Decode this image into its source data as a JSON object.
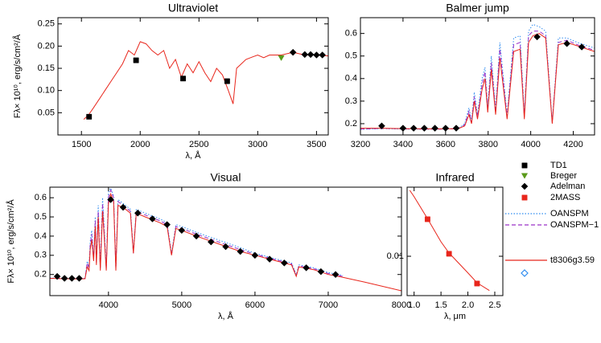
{
  "chart_data": [
    {
      "type": "line",
      "title": "Ultraviolet",
      "x_label": "λ, Å",
      "y_label": "Fλ× 10¹⁰, erg/s/cm²/Å",
      "xlim": [
        1300,
        3600
      ],
      "ylim": [
        0,
        0.264
      ],
      "xticks": [
        1500,
        2000,
        2500,
        3000,
        3500
      ],
      "yticks": [
        0.05,
        {
          "value": 0.1,
          "label": "0.10"
        },
        0.15,
        {
          "value": 0.2,
          "label": "0.20"
        },
        0.25
      ],
      "series": [
        {
          "style": "solid",
          "color": "#e8261c",
          "x": [
            1520,
            1560,
            1600,
            1650,
            1700,
            1750,
            1800,
            1850,
            1900,
            1950,
            2000,
            2050,
            2100,
            2150,
            2200,
            2250,
            2300,
            2350,
            2400,
            2450,
            2500,
            2550,
            2600,
            2650,
            2700,
            2750,
            2790,
            2820,
            2900,
            2950,
            3000,
            3050,
            3100,
            3200,
            3300,
            3400,
            3500,
            3600
          ],
          "values": [
            0.035,
            0.045,
            0.06,
            0.08,
            0.1,
            0.12,
            0.14,
            0.16,
            0.19,
            0.18,
            0.21,
            0.205,
            0.19,
            0.18,
            0.19,
            0.15,
            0.17,
            0.13,
            0.16,
            0.14,
            0.165,
            0.14,
            0.12,
            0.15,
            0.135,
            0.1,
            0.07,
            0.15,
            0.17,
            0.175,
            0.18,
            0.174,
            0.18,
            0.18,
            0.186,
            0.18,
            0.18,
            0.178
          ]
        },
        {
          "style": "square",
          "color": "#000000",
          "x": [
            1565,
            1965,
            2365,
            2740
          ],
          "values": [
            0.041,
            0.168,
            0.127,
            0.121
          ]
        },
        {
          "style": "triangle",
          "color": "#5a9a1a",
          "x": [
            3200
          ],
          "values": [
            0.173
          ]
        },
        {
          "style": "diamond",
          "color": "#000000",
          "x": [
            3300,
            3400,
            3450,
            3500,
            3550
          ],
          "values": [
            0.186,
            0.181,
            0.181,
            0.18,
            0.18
          ]
        }
      ]
    },
    {
      "type": "line",
      "title": "Balmer jump",
      "xlim": [
        3200,
        4300
      ],
      "ylim": [
        0.15,
        0.67
      ],
      "xticks": [
        3200,
        3400,
        3600,
        3800,
        4000,
        4200
      ],
      "yticks": [
        0.2,
        0.3,
        0.4,
        0.5,
        0.6
      ],
      "series": [
        {
          "style": "dotted",
          "color": "#2f8cf0",
          "x": [
            3200,
            3300,
            3400,
            3500,
            3600,
            3660,
            3690,
            3710,
            3722,
            3735,
            3750,
            3771,
            3785,
            3798,
            3815,
            3835,
            3855,
            3889,
            3920,
            3950,
            3970,
            3990,
            4010,
            4040,
            4070,
            4101,
            4130,
            4170,
            4220,
            4300
          ],
          "values": [
            0.175,
            0.178,
            0.176,
            0.176,
            0.176,
            0.178,
            0.2,
            0.27,
            0.21,
            0.34,
            0.24,
            0.4,
            0.45,
            0.27,
            0.5,
            0.26,
            0.56,
            0.24,
            0.58,
            0.59,
            0.24,
            0.61,
            0.64,
            0.63,
            0.61,
            0.21,
            0.58,
            0.58,
            0.56,
            0.535
          ]
        },
        {
          "style": "dashed",
          "color": "#9b30c8",
          "x": [
            3200,
            3300,
            3400,
            3500,
            3600,
            3660,
            3690,
            3710,
            3722,
            3735,
            3750,
            3771,
            3785,
            3798,
            3815,
            3835,
            3855,
            3889,
            3920,
            3950,
            3970,
            3990,
            4010,
            4040,
            4070,
            4101,
            4130,
            4170,
            4220,
            4300
          ],
          "values": [
            0.176,
            0.179,
            0.177,
            0.176,
            0.176,
            0.178,
            0.195,
            0.255,
            0.205,
            0.32,
            0.23,
            0.37,
            0.43,
            0.26,
            0.47,
            0.25,
            0.53,
            0.23,
            0.55,
            0.56,
            0.23,
            0.59,
            0.61,
            0.61,
            0.59,
            0.205,
            0.56,
            0.57,
            0.55,
            0.525
          ]
        },
        {
          "style": "solid",
          "color": "#e8261c",
          "x": [
            3200,
            3300,
            3400,
            3500,
            3600,
            3660,
            3690,
            3710,
            3722,
            3735,
            3750,
            3771,
            3785,
            3798,
            3815,
            3835,
            3855,
            3889,
            3920,
            3950,
            3970,
            3990,
            4010,
            4040,
            4070,
            4101,
            4130,
            4170,
            4220,
            4300
          ],
          "values": [
            0.18,
            0.18,
            0.178,
            0.177,
            0.177,
            0.178,
            0.19,
            0.24,
            0.2,
            0.3,
            0.22,
            0.35,
            0.4,
            0.25,
            0.44,
            0.24,
            0.49,
            0.22,
            0.52,
            0.53,
            0.22,
            0.56,
            0.59,
            0.6,
            0.58,
            0.2,
            0.55,
            0.56,
            0.545,
            0.52
          ]
        },
        {
          "style": "diamond",
          "color": "#000000",
          "x": [
            3300,
            3400,
            3450,
            3500,
            3550,
            3600,
            3650,
            4030,
            4170,
            4240
          ],
          "values": [
            0.19,
            0.18,
            0.18,
            0.18,
            0.18,
            0.18,
            0.18,
            0.585,
            0.555,
            0.54
          ]
        }
      ]
    },
    {
      "type": "line",
      "title": "Visual",
      "x_label": "λ, Å",
      "y_label": "Fλ× 10¹⁰, erg/s/cm²/Å",
      "xlim": [
        3200,
        8000
      ],
      "ylim": [
        0.09,
        0.655
      ],
      "xticks": [
        4000,
        5000,
        6000,
        7000,
        8000
      ],
      "yticks": [
        0.2,
        0.3,
        0.4,
        0.5,
        0.6
      ],
      "series": [
        {
          "style": "dotted",
          "color": "#2f8cf0",
          "x": [
            3200,
            3400,
            3600,
            3680,
            3710,
            3735,
            3750,
            3771,
            3798,
            3820,
            3835,
            3860,
            3889,
            3920,
            3970,
            4000,
            4030,
            4070,
            4101,
            4130,
            4200,
            4300,
            4340,
            4380,
            4500,
            4700,
            4800,
            4861,
            4920,
            5000,
            5200,
            5500,
            5800,
            6000,
            6300,
            6500,
            6563,
            6600,
            6800,
            7000,
            7200,
            7500,
            8000
          ],
          "values": [
            0.182,
            0.18,
            0.178,
            0.18,
            0.27,
            0.24,
            0.37,
            0.43,
            0.29,
            0.5,
            0.27,
            0.56,
            0.24,
            0.6,
            0.24,
            0.63,
            0.65,
            0.61,
            0.24,
            0.59,
            0.57,
            0.54,
            0.32,
            0.54,
            0.52,
            0.49,
            0.47,
            0.31,
            0.46,
            0.45,
            0.42,
            0.38,
            0.34,
            0.31,
            0.28,
            0.26,
            0.2,
            0.25,
            0.235,
            0.21,
            0.195,
            null,
            null
          ]
        },
        {
          "style": "dashed",
          "color": "#9b30c8",
          "x": [
            3200,
            3400,
            3600,
            3680,
            3710,
            3735,
            3750,
            3771,
            3798,
            3820,
            3835,
            3860,
            3889,
            3920,
            3970,
            4000,
            4030,
            4070,
            4101,
            4130,
            4200,
            4300,
            4340,
            4380,
            4500,
            4700,
            4800,
            4861,
            4920,
            5000,
            5200,
            5500,
            5800,
            6000,
            6300,
            6500,
            6563,
            6600,
            6800,
            7000,
            7200,
            7500,
            8000
          ],
          "values": [
            0.18,
            0.179,
            0.177,
            0.179,
            0.26,
            0.23,
            0.35,
            0.41,
            0.28,
            0.48,
            0.26,
            0.53,
            0.23,
            0.57,
            0.23,
            0.6,
            0.64,
            0.6,
            0.23,
            0.58,
            0.56,
            0.53,
            0.31,
            0.53,
            0.51,
            0.48,
            0.46,
            0.3,
            0.45,
            0.44,
            0.41,
            0.37,
            0.33,
            0.305,
            0.275,
            0.255,
            0.195,
            0.245,
            0.23,
            0.205,
            0.19,
            null,
            null
          ]
        },
        {
          "style": "solid",
          "color": "#e8261c",
          "x": [
            3200,
            3400,
            3600,
            3680,
            3710,
            3735,
            3750,
            3771,
            3798,
            3820,
            3835,
            3860,
            3889,
            3920,
            3970,
            4000,
            4030,
            4070,
            4101,
            4130,
            4200,
            4300,
            4340,
            4380,
            4500,
            4700,
            4800,
            4861,
            4920,
            5000,
            5200,
            5500,
            5800,
            6000,
            6300,
            6500,
            6563,
            6600,
            6800,
            7000,
            7200,
            7500,
            8000
          ],
          "values": [
            0.18,
            0.178,
            0.177,
            0.178,
            0.24,
            0.22,
            0.33,
            0.38,
            0.27,
            0.45,
            0.25,
            0.5,
            0.22,
            0.53,
            0.22,
            0.57,
            0.62,
            0.58,
            0.22,
            0.56,
            0.55,
            0.52,
            0.31,
            0.52,
            0.5,
            0.47,
            0.45,
            0.3,
            0.44,
            0.43,
            0.4,
            0.36,
            0.32,
            0.3,
            0.27,
            0.25,
            0.19,
            0.24,
            0.225,
            0.2,
            0.185,
            0.16,
            0.115
          ]
        },
        {
          "style": "diamond",
          "color": "#000000",
          "x": [
            3300,
            3400,
            3500,
            3600,
            4030,
            4200,
            4400,
            4600,
            4800,
            5000,
            5200,
            5400,
            5600,
            5800,
            6000,
            6200,
            6400,
            6700,
            6900,
            7100
          ],
          "values": [
            0.19,
            0.18,
            0.18,
            0.18,
            0.59,
            0.55,
            0.52,
            0.49,
            0.46,
            0.43,
            0.4,
            0.37,
            0.345,
            0.32,
            0.3,
            0.28,
            0.26,
            0.235,
            0.215,
            0.2
          ]
        }
      ]
    },
    {
      "type": "line",
      "title": "Infrared",
      "x_label": "λ, μm",
      "log_y": true,
      "xlim": [
        0.87,
        2.65
      ],
      "ylim": [
        0.004,
        0.05
      ],
      "xticks": [
        {
          "value": 1,
          "label": "1.0"
        },
        1.5,
        {
          "value": 2,
          "label": "2.0"
        },
        2.5
      ],
      "yticks": [
        0.01
      ],
      "series": [
        {
          "style": "solid",
          "color": "#e8261c",
          "x": [
            0.92,
            1.0,
            1.25,
            1.5,
            1.65,
            2.0,
            2.17,
            2.4
          ],
          "values": [
            0.0465,
            0.04,
            0.024,
            0.014,
            0.0108,
            0.0068,
            0.0054,
            0.0045
          ]
        },
        {
          "style": "square",
          "color": "#e8261c",
          "x": [
            1.25,
            1.65,
            2.17
          ],
          "values": [
            0.0237,
            0.0106,
            0.0053
          ]
        }
      ]
    }
  ],
  "legend": [
    {
      "name": "TD1",
      "color": "#000000",
      "marker": "square"
    },
    {
      "name": "Breger",
      "color": "#5a9a1a",
      "marker": "triangle"
    },
    {
      "name": "Adelman",
      "color": "#000000",
      "marker": "diamond"
    },
    {
      "name": "2MASS",
      "color": "#e8261c",
      "marker": "square"
    },
    {
      "name": "OANSPM",
      "color": "#2f8cf0",
      "marker": "dotted"
    },
    {
      "name": "OANSPM−1",
      "color": "#9b30c8",
      "marker": "dashed"
    },
    {
      "name": "t8306g3.59",
      "color": "#e8261c",
      "marker": "solid"
    }
  ]
}
